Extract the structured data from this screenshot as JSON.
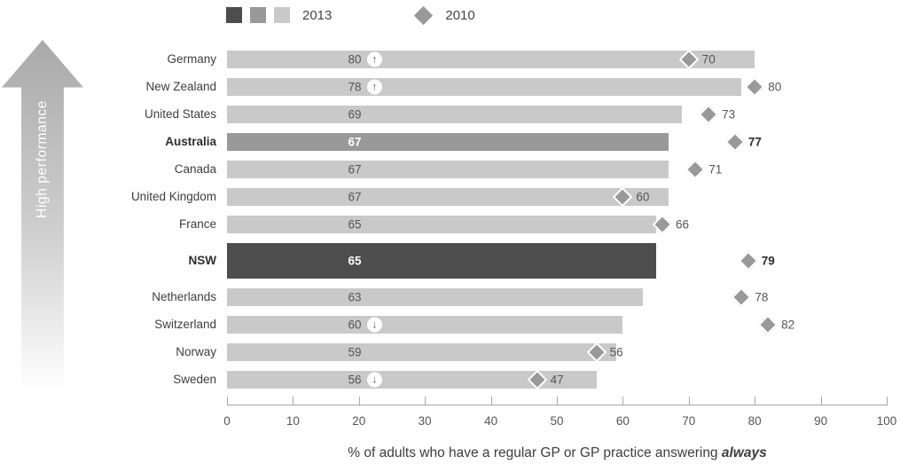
{
  "legend": {
    "series_2013": {
      "label": "2013",
      "swatches": [
        {
          "name": "dark",
          "color": "#4d4d4d"
        },
        {
          "name": "mid",
          "color": "#999999"
        },
        {
          "name": "light",
          "color": "#c9c9c9"
        }
      ]
    },
    "series_2010": {
      "label": "2010",
      "marker": "diamond-icon",
      "color": "#999999"
    }
  },
  "arrow_label": "High performance",
  "rows": [
    {
      "label": "Germany",
      "bar": 80,
      "badge": "up",
      "diamond": 70,
      "style": "light",
      "bold": false
    },
    {
      "label": "New Zealand",
      "bar": 78,
      "badge": "up",
      "diamond": 80,
      "style": "light",
      "bold": false
    },
    {
      "label": "United States",
      "bar": 69,
      "badge": null,
      "diamond": 73,
      "style": "light",
      "bold": false
    },
    {
      "label": "Australia",
      "bar": 67,
      "badge": null,
      "diamond": 77,
      "style": "mid",
      "bold": true
    },
    {
      "label": "Canada",
      "bar": 67,
      "badge": null,
      "diamond": 71,
      "style": "light",
      "bold": false
    },
    {
      "label": "United Kingdom",
      "bar": 67,
      "badge": null,
      "diamond": 60,
      "style": "light",
      "bold": false
    },
    {
      "label": "France",
      "bar": 65,
      "badge": null,
      "diamond": 66,
      "style": "light",
      "bold": false
    },
    {
      "label": "NSW",
      "bar": 65,
      "badge": null,
      "diamond": 79,
      "style": "dark",
      "bold": true
    },
    {
      "label": "Netherlands",
      "bar": 63,
      "badge": null,
      "diamond": 78,
      "style": "light",
      "bold": false
    },
    {
      "label": "Switzerland",
      "bar": 60,
      "badge": "down",
      "diamond": 82,
      "style": "light",
      "bold": false
    },
    {
      "label": "Norway",
      "bar": 59,
      "badge": null,
      "diamond": 56,
      "style": "light",
      "bold": false
    },
    {
      "label": "Sweden",
      "bar": 56,
      "badge": "down",
      "diamond": 47,
      "style": "light",
      "bold": false
    }
  ],
  "x_axis": {
    "ticks": [
      0,
      10,
      20,
      30,
      40,
      50,
      60,
      70,
      80,
      90,
      100
    ]
  },
  "caption": {
    "text": "% of adults who have a regular GP or GP practice answering ",
    "emphasis": "always"
  },
  "badge_glyphs": {
    "up": "↑",
    "down": "↓"
  },
  "chart_data": {
    "type": "bar",
    "orientation": "horizontal",
    "categories": [
      "Germany",
      "New Zealand",
      "United States",
      "Australia",
      "Canada",
      "United Kingdom",
      "France",
      "NSW",
      "Netherlands",
      "Switzerland",
      "Norway",
      "Sweden"
    ],
    "series": [
      {
        "name": "2013",
        "marker": "bar",
        "values": [
          80,
          78,
          69,
          67,
          67,
          67,
          65,
          65,
          63,
          60,
          59,
          56
        ]
      },
      {
        "name": "2010",
        "marker": "diamond",
        "values": [
          70,
          80,
          73,
          77,
          71,
          60,
          66,
          79,
          78,
          82,
          56,
          47
        ]
      }
    ],
    "trend_annotations": {
      "Germany": "up",
      "New Zealand": "up",
      "Switzerland": "down",
      "Sweden": "down"
    },
    "emphasized_categories": [
      "Australia",
      "NSW"
    ],
    "title": "",
    "xlabel": "% of adults who have a regular GP or GP practice answering always",
    "ylabel": "High performance",
    "xlim": [
      0,
      100
    ],
    "x_ticks": [
      0,
      10,
      20,
      30,
      40,
      50,
      60,
      70,
      80,
      90,
      100
    ],
    "grid": false,
    "legend_position": "top"
  }
}
